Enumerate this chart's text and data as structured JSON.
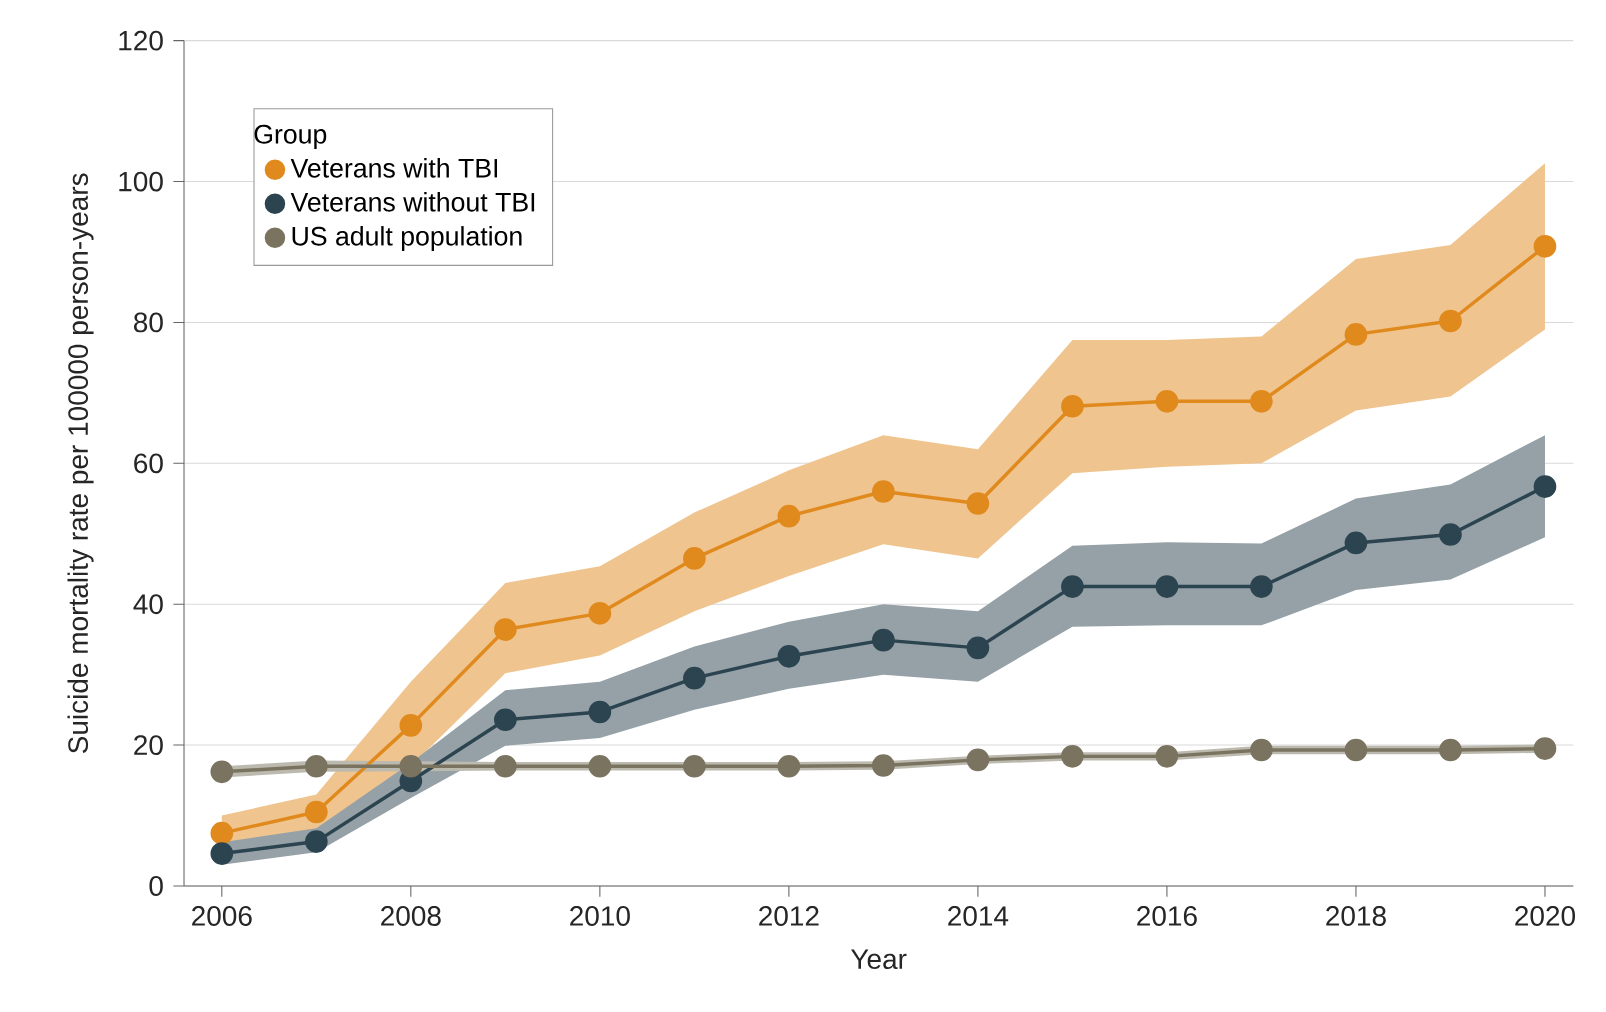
{
  "chart_data": {
    "type": "line",
    "xlabel": "Year",
    "ylabel": "Suicide mortality rate per 100000 person-years",
    "legend_title": "Group",
    "x": [
      2006,
      2007,
      2008,
      2009,
      2010,
      2011,
      2012,
      2013,
      2014,
      2015,
      2016,
      2017,
      2018,
      2019,
      2020
    ],
    "series": [
      {
        "name": "Veterans with TBI",
        "color": "#e08a1e",
        "values": [
          7.5,
          10.5,
          22.8,
          36.4,
          38.7,
          46.5,
          52.5,
          56,
          54.3,
          68.1,
          68.8,
          68.8,
          78.3,
          80.2,
          90.8
        ],
        "lower": [
          5,
          7,
          17,
          30.2,
          32.7,
          39,
          44,
          48.5,
          46.5,
          58.6,
          59.5,
          60,
          67.5,
          69.5,
          79
        ],
        "upper": [
          10,
          13,
          29,
          43,
          45.4,
          53,
          59,
          64,
          62,
          77.5,
          77.5,
          78,
          89,
          91,
          102.6
        ]
      },
      {
        "name": "Veterans without TBI",
        "color": "#2b4450",
        "values": [
          4.6,
          6.3,
          14.9,
          23.6,
          24.7,
          29.5,
          32.6,
          34.9,
          33.8,
          42.5,
          42.5,
          42.5,
          48.7,
          49.9,
          56.7
        ],
        "lower": [
          3,
          4.8,
          12.5,
          19.9,
          21,
          25,
          28,
          30,
          29,
          36.8,
          37,
          37,
          42,
          43.5,
          49.5
        ],
        "upper": [
          6.2,
          8.2,
          17.5,
          27.8,
          29,
          34,
          37.5,
          40,
          39,
          48.3,
          48.8,
          48.6,
          55,
          57,
          64
        ]
      },
      {
        "name": "US adult population",
        "color": "#7a7360",
        "values": [
          16.2,
          17,
          17,
          17,
          17,
          17,
          17,
          17.1,
          17.9,
          18.4,
          18.4,
          19.3,
          19.3,
          19.3,
          19.5
        ],
        "lower": [
          15.4,
          16.2,
          16.3,
          16.4,
          16.4,
          16.4,
          16.4,
          16.5,
          17.3,
          17.8,
          17.8,
          18.7,
          18.7,
          18.7,
          18.9
        ],
        "upper": [
          17,
          17.8,
          17.7,
          17.6,
          17.6,
          17.6,
          17.6,
          17.7,
          18.5,
          19,
          19,
          19.9,
          19.9,
          19.9,
          20.1
        ]
      }
    ],
    "xlim": [
      2005.6,
      2020.3
    ],
    "ylim": [
      0,
      120
    ],
    "xticks": [
      2006,
      2008,
      2010,
      2012,
      2014,
      2016,
      2018,
      2020
    ],
    "yticks": [
      0,
      20,
      40,
      60,
      80,
      100,
      120
    ],
    "grid": "y",
    "legend": "top left",
    "marker": "circle",
    "line_style": "solid"
  }
}
